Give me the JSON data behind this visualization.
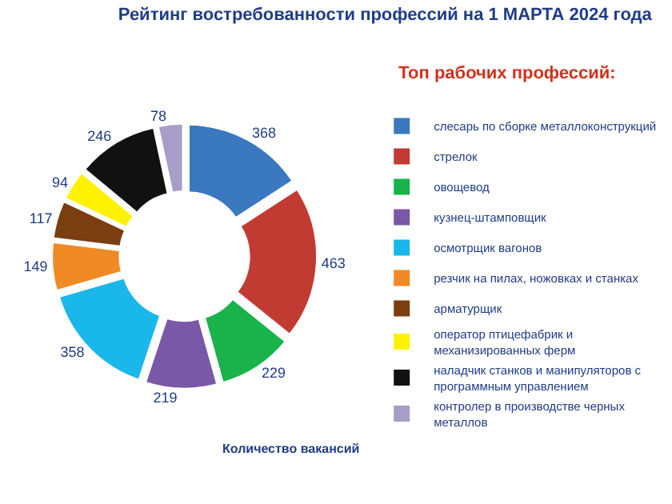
{
  "chart_data": {
    "type": "donut",
    "title": "Рейтинг востребованности профессий на 1 МАРТА 2024 года",
    "subtitle": "Топ рабочих профессий:",
    "categories": [
      "слесарь по сборке металлоконструкций",
      "стрелок",
      "овощевод",
      "кузнец-штамповщик",
      "осмотрщик вагонов",
      "резчик на пилах, ножовках и станках",
      "арматурщик",
      "оператор птицефабрик и механизированных ферм",
      "наладчик станков и манипуляторов с программным управлением",
      "контролер в производстве черных металлов"
    ],
    "values": [
      368,
      463,
      229,
      219,
      358,
      149,
      117,
      94,
      246,
      78
    ],
    "colors": [
      "#3a78c0",
      "#c23b33",
      "#19b24b",
      "#7a58a8",
      "#19b7ea",
      "#f08a24",
      "#7a3e10",
      "#fff200",
      "#111111",
      "#a89cc8"
    ],
    "data_labels": true,
    "legend": "right",
    "annotations": [
      "Количество вакансий"
    ]
  }
}
